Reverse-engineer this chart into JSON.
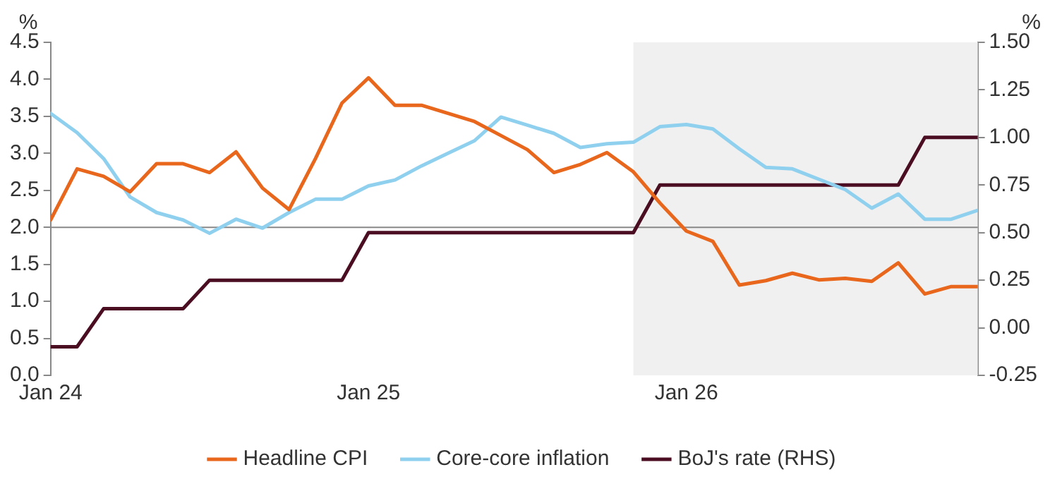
{
  "chart_data": {
    "type": "line",
    "ylabel": "%",
    "y2label": "%",
    "x": [
      "2024-01",
      "2024-02",
      "2024-03",
      "2024-04",
      "2024-05",
      "2024-06",
      "2024-07",
      "2024-08",
      "2024-09",
      "2024-10",
      "2024-11",
      "2024-12",
      "2025-01",
      "2025-02",
      "2025-03",
      "2025-04",
      "2025-05",
      "2025-06",
      "2025-07",
      "2025-08",
      "2025-09",
      "2025-10",
      "2025-11",
      "2025-12",
      "2026-01",
      "2026-02",
      "2026-03",
      "2026-04",
      "2026-05",
      "2026-06",
      "2026-07",
      "2026-08",
      "2026-09",
      "2026-10",
      "2026-11",
      "2026-12"
    ],
    "series": [
      {
        "name": "Headline CPI",
        "color": "#e8671c",
        "values": [
          2.1,
          2.79,
          2.69,
          2.48,
          2.86,
          2.86,
          2.74,
          3.02,
          2.53,
          2.24,
          2.93,
          3.68,
          4.02,
          3.65,
          3.65,
          3.54,
          3.43,
          3.24,
          3.05,
          2.74,
          2.85,
          3.01,
          2.75,
          2.33,
          1.95,
          1.81,
          1.22,
          1.28,
          1.38,
          1.29,
          1.31,
          1.27,
          1.52,
          1.1,
          1.2,
          1.2
        ]
      },
      {
        "name": "Core-core inflation",
        "color": "#8fd0ef",
        "values": [
          3.54,
          3.28,
          2.93,
          2.41,
          2.2,
          2.1,
          1.92,
          2.11,
          1.99,
          2.2,
          2.38,
          2.38,
          2.56,
          2.64,
          2.83,
          3.0,
          3.17,
          3.49,
          3.38,
          3.27,
          3.08,
          3.13,
          3.15,
          3.36,
          3.39,
          3.33,
          3.06,
          2.81,
          2.79,
          2.65,
          2.51,
          2.26,
          2.45,
          2.11,
          2.11,
          2.23
        ]
      },
      {
        "name": "BoJ's rate (RHS)",
        "color": "#4a0d22",
        "axis": "y2",
        "values": [
          -0.1,
          -0.1,
          0.1,
          0.1,
          0.1,
          0.1,
          0.25,
          0.25,
          0.25,
          0.25,
          0.25,
          0.25,
          0.5,
          0.5,
          0.5,
          0.5,
          0.5,
          0.5,
          0.5,
          0.5,
          0.5,
          0.5,
          0.5,
          0.75,
          0.75,
          0.75,
          0.75,
          0.75,
          0.75,
          0.75,
          0.75,
          0.75,
          0.75,
          1.0,
          1.0,
          1.0
        ]
      }
    ],
    "xlim": [
      "2024-01",
      "2026-12"
    ],
    "xticks": [
      {
        "value": "2024-01",
        "label": "Jan 24"
      },
      {
        "value": "2025-01",
        "label": "Jan 25"
      },
      {
        "value": "2026-01",
        "label": "Jan 26"
      }
    ],
    "ylim": [
      0,
      4.5
    ],
    "yticks": [
      {
        "value": 0,
        "label": "0.0"
      },
      {
        "value": 0.5,
        "label": "0.5"
      },
      {
        "value": 1,
        "label": "1.0"
      },
      {
        "value": 1.5,
        "label": "1.5"
      },
      {
        "value": 2,
        "label": "2.0"
      },
      {
        "value": 2.5,
        "label": "2.5"
      },
      {
        "value": 3,
        "label": "3.0"
      },
      {
        "value": 3.5,
        "label": "3.5"
      },
      {
        "value": 4,
        "label": "4.0"
      },
      {
        "value": 4.5,
        "label": "4.5"
      }
    ],
    "y2lim": [
      -0.25,
      1.5
    ],
    "y2ticks": [
      {
        "value": -0.25,
        "label": "-0.25"
      },
      {
        "value": 0,
        "label": "0.00"
      },
      {
        "value": 0.25,
        "label": "0.25"
      },
      {
        "value": 0.5,
        "label": "0.50"
      },
      {
        "value": 0.75,
        "label": "0.75"
      },
      {
        "value": 1,
        "label": "1.00"
      },
      {
        "value": 1.25,
        "label": "1.25"
      },
      {
        "value": 1.5,
        "label": "1.50"
      }
    ],
    "ref_lines": [
      {
        "axis": "y",
        "value": 2,
        "color": "#888888"
      }
    ],
    "bands": [
      {
        "axis": "x",
        "from": "2025-11",
        "to": "2026-12",
        "color": "#f0f0f0"
      }
    ],
    "grid": false,
    "legend": "bottom",
    "marker": "none",
    "line_style": "solid"
  }
}
